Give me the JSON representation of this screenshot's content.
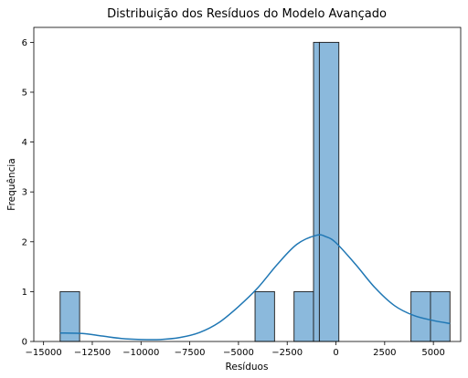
{
  "chart_data": {
    "type": "bar",
    "title": "Distribuição dos Resíduos do Modelo Avançado",
    "xlabel": "Resíduos",
    "ylabel": "Frequência",
    "xlim": [
      -15500,
      6400
    ],
    "ylim": [
      0,
      6.3
    ],
    "xticks": [
      -15000,
      -12500,
      -10000,
      -7500,
      -5000,
      -2500,
      0,
      2500,
      5000
    ],
    "xtick_labels": [
      "−15000",
      "−12500",
      "−10000",
      "−7500",
      "−5000",
      "−2500",
      "0",
      "2500",
      "5000"
    ],
    "yticks": [
      0,
      1,
      2,
      3,
      4,
      5,
      6
    ],
    "ytick_labels": [
      "0",
      "1",
      "2",
      "3",
      "4",
      "5",
      "6"
    ],
    "grid": false,
    "bar_color": "#8bb9dc",
    "bar_edge_color": "#1a1a1a",
    "kde_color": "#1f77b4",
    "bins": [
      {
        "x0": -14150,
        "x1": -13150,
        "count": 1
      },
      {
        "x0": -4150,
        "x1": -3150,
        "count": 1
      },
      {
        "x0": -2150,
        "x1": -1150,
        "count": 1
      },
      {
        "x0": -1150,
        "x1": -850,
        "count": 6
      },
      {
        "x0": -850,
        "x1": 150,
        "count": 6
      },
      {
        "x0": 3850,
        "x1": 4850,
        "count": 1
      },
      {
        "x0": 4850,
        "x1": 5850,
        "count": 1
      }
    ],
    "kde": {
      "x": [
        -14150,
        -13000,
        -12000,
        -11000,
        -10000,
        -9000,
        -8000,
        -7000,
        -6000,
        -5000,
        -4000,
        -3000,
        -2000,
        -1000,
        -500,
        0,
        1000,
        2000,
        3000,
        4000,
        5000,
        5850
      ],
      "y": [
        0.17,
        0.16,
        0.11,
        0.06,
        0.04,
        0.04,
        0.08,
        0.18,
        0.38,
        0.7,
        1.08,
        1.55,
        1.95,
        2.13,
        2.1,
        1.98,
        1.55,
        1.08,
        0.72,
        0.52,
        0.42,
        0.36
      ]
    }
  }
}
